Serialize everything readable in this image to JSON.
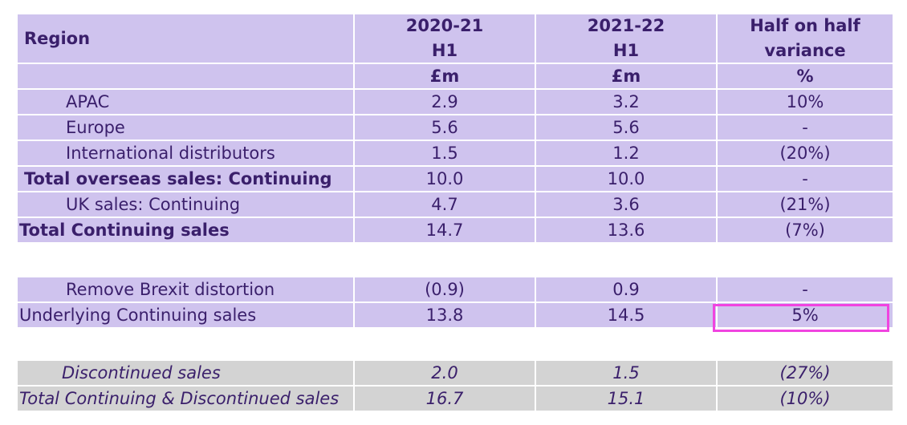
{
  "table": {
    "header": {
      "region": "Region",
      "col1_line1": "2020-21",
      "col1_line2": "H1",
      "col2_line1": "2021-22",
      "col2_line2": "H1",
      "col3_line1": "Half on half",
      "col3_line2": "variance"
    },
    "units": {
      "col1": "£m",
      "col2": "£m",
      "col3": "%"
    },
    "rows": [
      {
        "label": "APAC",
        "v1": "2.9",
        "v2": "3.2",
        "v3": "10%"
      },
      {
        "label": "Europe",
        "v1": "5.6",
        "v2": "5.6",
        "v3": "-"
      },
      {
        "label": "International distributors",
        "v1": "1.5",
        "v2": "1.2",
        "v3": "(20%)"
      },
      {
        "label": "Total overseas sales: Continuing",
        "v1": "10.0",
        "v2": "10.0",
        "v3": "-"
      },
      {
        "label": "UK sales: Continuing",
        "v1": "4.7",
        "v2": "3.6",
        "v3": "(21%)"
      },
      {
        "label": "Total Continuing sales",
        "v1": "14.7",
        "v2": "13.6",
        "v3": "(7%)"
      }
    ],
    "rows2": [
      {
        "label": "Remove Brexit distortion",
        "v1": "(0.9)",
        "v2": "0.9",
        "v3": "-"
      },
      {
        "label": "Underlying Continuing sales",
        "v1": "13.8",
        "v2": "14.5",
        "v3": "5%"
      }
    ],
    "rows3": [
      {
        "label": "Discontinued sales",
        "v1": "2.0",
        "v2": "1.5",
        "v3": "(27%)"
      },
      {
        "label": "Total Continuing & Discontinued sales",
        "v1": "16.7",
        "v2": "15.1",
        "v3": "(10%)"
      }
    ]
  },
  "colors": {
    "purple_fill": "#cfc3ee",
    "grey_fill": "#d3d3d3",
    "text": "#3a1f6b",
    "highlight_border": "#f044e0"
  }
}
